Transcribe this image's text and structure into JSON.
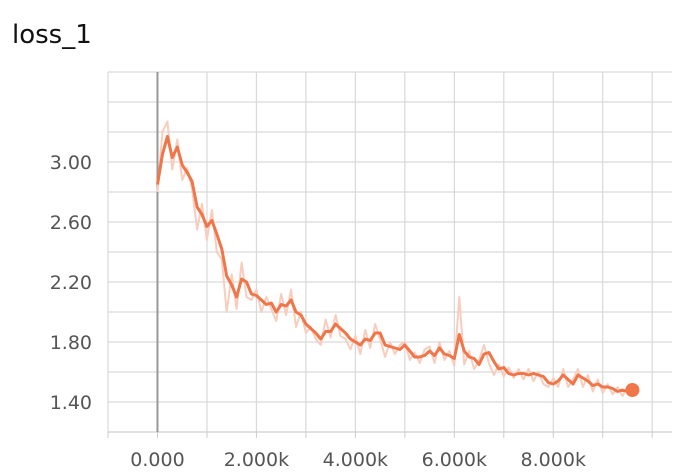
{
  "chart_data": {
    "type": "line",
    "title": "loss_1",
    "xlabel": "",
    "ylabel": "",
    "xlim": [
      -1000,
      10400
    ],
    "ylim": [
      1.2,
      3.6
    ],
    "x_ticks": [
      0,
      2000,
      4000,
      6000,
      8000
    ],
    "x_tick_labels": [
      "0.000",
      "2.000k",
      "4.000k",
      "6.000k",
      "8.000k"
    ],
    "y_ticks": [
      1.4,
      1.8,
      2.2,
      2.6,
      3.0
    ],
    "y_tick_labels": [
      "1.40",
      "1.80",
      "2.20",
      "2.60",
      "3.00"
    ],
    "grid": true,
    "colors": {
      "smoothed": "#f07548",
      "raw": "#f9cdbd",
      "axis_zero": "#999999",
      "grid": "#d9d9d9"
    },
    "series": [
      {
        "role": "smoothed",
        "x": [
          0,
          100,
          200,
          300,
          400,
          500,
          600,
          700,
          800,
          900,
          1000,
          1100,
          1200,
          1300,
          1400,
          1500,
          1600,
          1700,
          1800,
          1900,
          2000,
          2100,
          2200,
          2300,
          2400,
          2500,
          2600,
          2700,
          2800,
          2900,
          3000,
          3100,
          3200,
          3300,
          3400,
          3500,
          3600,
          3700,
          3800,
          3900,
          4000,
          4100,
          4200,
          4300,
          4400,
          4500,
          4600,
          4700,
          4800,
          4900,
          5000,
          5100,
          5200,
          5300,
          5400,
          5500,
          5600,
          5700,
          5800,
          5900,
          6000,
          6100,
          6200,
          6300,
          6400,
          6500,
          6600,
          6700,
          6800,
          6900,
          7000,
          7100,
          7200,
          7300,
          7400,
          7500,
          7600,
          7700,
          7800,
          7900,
          8000,
          8100,
          8200,
          8300,
          8400,
          8500,
          8600,
          8700,
          8800,
          8900,
          9000,
          9100,
          9200,
          9300,
          9400,
          9500,
          9600
        ],
        "y": [
          2.85,
          3.05,
          3.17,
          3.03,
          3.1,
          2.98,
          2.93,
          2.87,
          2.7,
          2.65,
          2.57,
          2.61,
          2.52,
          2.42,
          2.24,
          2.18,
          2.1,
          2.22,
          2.2,
          2.12,
          2.11,
          2.08,
          2.05,
          2.06,
          2.0,
          2.05,
          2.04,
          2.08,
          2.0,
          1.98,
          1.92,
          1.89,
          1.86,
          1.82,
          1.87,
          1.87,
          1.92,
          1.89,
          1.86,
          1.82,
          1.8,
          1.78,
          1.82,
          1.81,
          1.86,
          1.86,
          1.78,
          1.77,
          1.76,
          1.75,
          1.78,
          1.74,
          1.7,
          1.7,
          1.71,
          1.74,
          1.71,
          1.76,
          1.72,
          1.71,
          1.69,
          1.85,
          1.74,
          1.7,
          1.69,
          1.65,
          1.72,
          1.73,
          1.67,
          1.62,
          1.63,
          1.59,
          1.58,
          1.59,
          1.59,
          1.58,
          1.59,
          1.58,
          1.57,
          1.53,
          1.52,
          1.54,
          1.58,
          1.55,
          1.52,
          1.58,
          1.56,
          1.54,
          1.51,
          1.52,
          1.5,
          1.5,
          1.49,
          1.47,
          1.48,
          1.47,
          1.48
        ]
      },
      {
        "role": "raw",
        "x": [
          0,
          100,
          200,
          300,
          400,
          500,
          600,
          700,
          800,
          900,
          1000,
          1100,
          1200,
          1300,
          1400,
          1500,
          1600,
          1700,
          1800,
          1900,
          2000,
          2100,
          2200,
          2300,
          2400,
          2500,
          2600,
          2700,
          2800,
          2900,
          3000,
          3100,
          3200,
          3300,
          3400,
          3500,
          3600,
          3700,
          3800,
          3900,
          4000,
          4100,
          4200,
          4300,
          4400,
          4500,
          4600,
          4700,
          4800,
          4900,
          5000,
          5100,
          5200,
          5300,
          5400,
          5500,
          5600,
          5700,
          5800,
          5900,
          6000,
          6100,
          6200,
          6300,
          6400,
          6500,
          6600,
          6700,
          6800,
          6900,
          7000,
          7100,
          7200,
          7300,
          7400,
          7500,
          7600,
          7700,
          7800,
          7900,
          8000,
          8100,
          8200,
          8300,
          8400,
          8500,
          8600,
          8700,
          8800,
          8900,
          9000,
          9100,
          9200,
          9300,
          9400,
          9500,
          9600
        ],
        "y": [
          2.8,
          3.2,
          3.27,
          2.95,
          3.15,
          2.88,
          2.96,
          2.82,
          2.55,
          2.72,
          2.48,
          2.68,
          2.4,
          2.35,
          2.0,
          2.25,
          2.02,
          2.33,
          2.1,
          2.08,
          2.15,
          2.0,
          2.1,
          2.02,
          1.94,
          2.12,
          1.98,
          2.15,
          1.9,
          2.0,
          1.86,
          1.9,
          1.82,
          1.78,
          1.95,
          1.83,
          1.98,
          1.84,
          1.82,
          1.75,
          1.84,
          1.72,
          1.88,
          1.76,
          1.92,
          1.82,
          1.7,
          1.8,
          1.72,
          1.78,
          1.8,
          1.68,
          1.73,
          1.66,
          1.75,
          1.77,
          1.66,
          1.8,
          1.68,
          1.74,
          1.64,
          2.1,
          1.65,
          1.74,
          1.62,
          1.68,
          1.78,
          1.66,
          1.58,
          1.65,
          1.57,
          1.63,
          1.56,
          1.62,
          1.55,
          1.62,
          1.54,
          1.6,
          1.52,
          1.5,
          1.56,
          1.5,
          1.62,
          1.5,
          1.55,
          1.62,
          1.5,
          1.58,
          1.47,
          1.55,
          1.46,
          1.52,
          1.45,
          1.5,
          1.44,
          1.5,
          1.46
        ]
      }
    ]
  }
}
